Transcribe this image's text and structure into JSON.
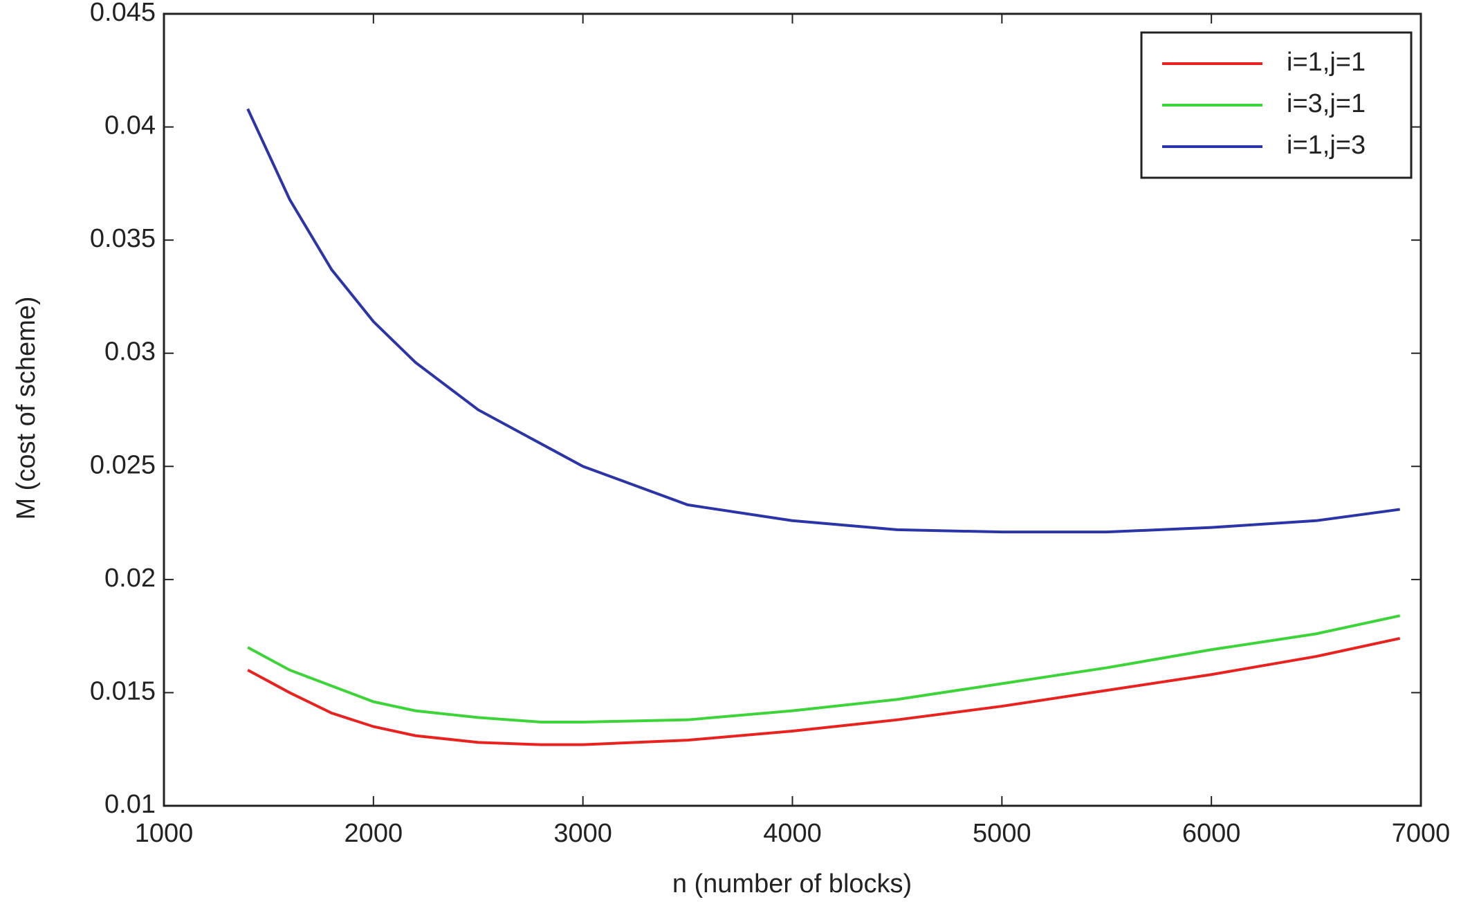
{
  "chart_data": {
    "type": "line",
    "x_label": "n  (number of blocks)",
    "y_label": "M  (cost of scheme)",
    "x": [
      1400,
      1600,
      1800,
      2000,
      2200,
      2500,
      2800,
      3000,
      3500,
      4000,
      4500,
      5000,
      5500,
      6000,
      6500,
      6900
    ],
    "series": [
      {
        "name": "i=1,j=1",
        "color": "#e8231f",
        "values": [
          0.016,
          0.015,
          0.0141,
          0.0135,
          0.0131,
          0.0128,
          0.0127,
          0.0127,
          0.0129,
          0.0133,
          0.0138,
          0.0144,
          0.0151,
          0.0158,
          0.0166,
          0.0174
        ]
      },
      {
        "name": "i=3,j=1",
        "color": "#3dd43a",
        "values": [
          0.017,
          0.016,
          0.0153,
          0.0146,
          0.0142,
          0.0139,
          0.0137,
          0.0137,
          0.0138,
          0.0142,
          0.0147,
          0.0154,
          0.0161,
          0.0169,
          0.0176,
          0.0184
        ]
      },
      {
        "name": "i=1,j=3",
        "color": "#2b35a8",
        "values": [
          0.0408,
          0.0368,
          0.0337,
          0.0314,
          0.0296,
          0.0275,
          0.026,
          0.025,
          0.0233,
          0.0226,
          0.0222,
          0.0221,
          0.0221,
          0.0223,
          0.0226,
          0.0231
        ]
      }
    ],
    "xlim": [
      1000,
      7000
    ],
    "xticks": [
      1000,
      2000,
      3000,
      4000,
      5000,
      6000,
      7000
    ],
    "ylim": [
      0.01,
      0.045
    ],
    "yticks": [
      0.01,
      0.015,
      0.02,
      0.025,
      0.03,
      0.035,
      0.04,
      0.045
    ],
    "legend": "upper right",
    "grid": false
  }
}
